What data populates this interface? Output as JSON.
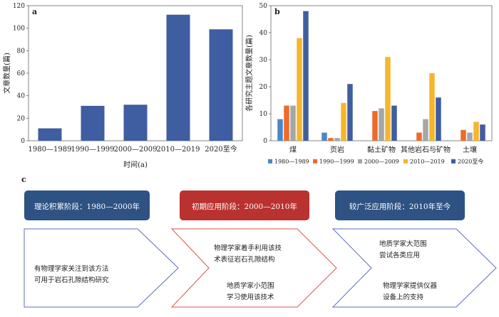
{
  "chart_data": [
    {
      "panel": "a",
      "type": "bar",
      "xlabel": "时间(a)",
      "ylabel": "文章数量(篇)",
      "ylim": [
        0,
        120
      ],
      "yticks": [
        0,
        20,
        40,
        60,
        80,
        100,
        120
      ],
      "categories": [
        "1980—1989",
        "1990—1999",
        "2000—2009",
        "2010—2019",
        "2020至今"
      ],
      "values": [
        11,
        31,
        32,
        112,
        99
      ],
      "color": "#3f5da1"
    },
    {
      "panel": "b",
      "type": "bar",
      "ylabel": "各研究主题文章数量(篇)",
      "ylim": [
        0,
        50
      ],
      "yticks": [
        0,
        10,
        20,
        30,
        40,
        50
      ],
      "categories": [
        "煤",
        "页岩",
        "黏土矿物",
        "其他岩石与矿物",
        "土壤"
      ],
      "series": [
        {
          "name": "1980—1989",
          "color": "#4a86c8",
          "values": [
            8,
            3,
            0,
            0,
            0
          ]
        },
        {
          "name": "1990—1999",
          "color": "#ef6a2a",
          "values": [
            13,
            1,
            11,
            3,
            4
          ]
        },
        {
          "name": "2000—2009",
          "color": "#a6a6a6",
          "values": [
            13,
            1,
            12,
            8,
            3
          ]
        },
        {
          "name": "2010—2019",
          "color": "#f6b62b",
          "values": [
            38,
            14,
            31,
            25,
            7
          ]
        },
        {
          "name": "2020至今",
          "color": "#3f5da1",
          "values": [
            48,
            21,
            13,
            16,
            6
          ]
        }
      ]
    }
  ],
  "timeline": {
    "label": "c",
    "stages": [
      {
        "title": "理论积累阶段：1980—2000年",
        "header_color": "#2e5283",
        "border_color": "#5b6bbf",
        "lines": [
          "有物理学家关注到该方法",
          "可用于岩石孔隙结构研究"
        ]
      },
      {
        "title": "初期应用阶段：2000—2010年",
        "header_color": "#b9322f",
        "border_color": "#d9534a",
        "lines": [
          "物理学家着手利用该技",
          "术表征岩石孔隙结构",
          "地质学家小范围",
          "学习使用该技术"
        ]
      },
      {
        "title": "较广泛应用阶段：2010年至今",
        "header_color": "#2e5283",
        "border_color": "#5b6bbf",
        "lines": [
          "地质学家大范围",
          "尝试各类应用",
          "物理学家提供仪器",
          "设备上的支持"
        ]
      }
    ]
  }
}
